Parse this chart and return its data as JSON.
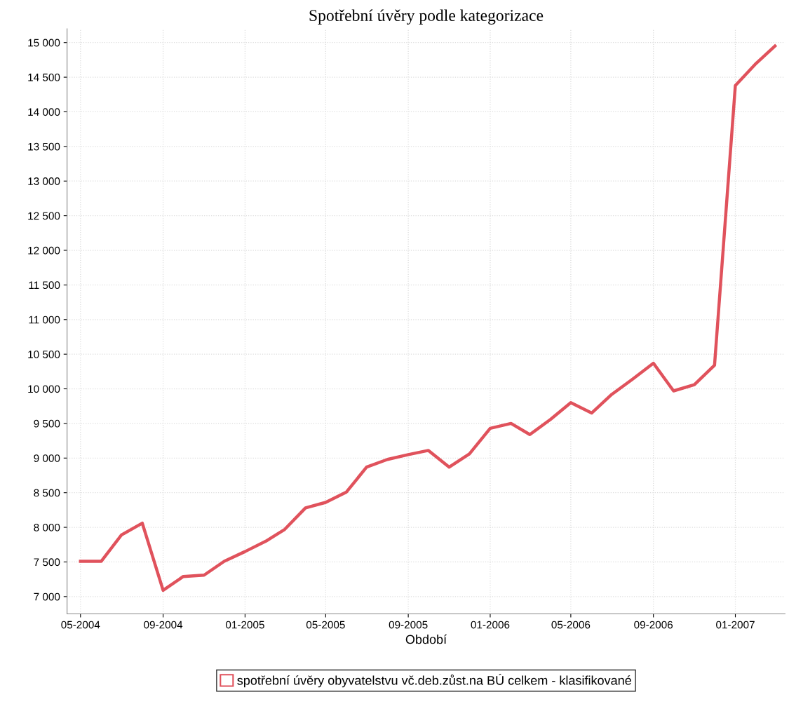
{
  "chart_data": {
    "type": "line",
    "title": "Spotřební úvěry podle kategorizace",
    "xlabel": "Období",
    "x": [
      "2004-05",
      "2004-06",
      "2004-07",
      "2004-08",
      "2004-09",
      "2004-10",
      "2004-11",
      "2004-12",
      "2005-01",
      "2005-02",
      "2005-03",
      "2005-04",
      "2005-05",
      "2005-06",
      "2005-07",
      "2005-08",
      "2005-09",
      "2005-10",
      "2005-11",
      "2005-12",
      "2006-01",
      "2006-02",
      "2006-03",
      "2006-04",
      "2006-05",
      "2006-06",
      "2006-07",
      "2006-08",
      "2006-09",
      "2006-10",
      "2006-11",
      "2006-12",
      "2007-01",
      "2007-02",
      "2007-03"
    ],
    "series": [
      {
        "name": "spotřební úvěry obyvatelstvu vč.deb.zůst.na BÚ celkem - klasifikované",
        "color": "#e0525c",
        "values": [
          7510,
          7510,
          7890,
          8060,
          7090,
          7290,
          7310,
          7510,
          7650,
          7800,
          7970,
          8280,
          8360,
          8510,
          8870,
          8980,
          9050,
          9110,
          8870,
          9060,
          9430,
          9500,
          9340,
          9560,
          9800,
          9650,
          9920,
          10140,
          10370,
          9970,
          10060,
          10340,
          14380,
          14700,
          14950
        ]
      }
    ],
    "xlim": [
      "2004-04-11",
      "2007-03-16"
    ],
    "xticks": [
      {
        "value": "2004-05",
        "label": "05-2004"
      },
      {
        "value": "2004-09",
        "label": "09-2004"
      },
      {
        "value": "2005-01",
        "label": "01-2005"
      },
      {
        "value": "2005-05",
        "label": "05-2005"
      },
      {
        "value": "2005-09",
        "label": "09-2005"
      },
      {
        "value": "2006-01",
        "label": "01-2006"
      },
      {
        "value": "2006-05",
        "label": "05-2006"
      },
      {
        "value": "2006-09",
        "label": "09-2006"
      },
      {
        "value": "2007-01",
        "label": "01-2007"
      }
    ],
    "ylim": [
      6750,
      15200
    ],
    "yticks": [
      {
        "value": 7000,
        "label": "7 000"
      },
      {
        "value": 7500,
        "label": "7 500"
      },
      {
        "value": 8000,
        "label": "8 000"
      },
      {
        "value": 8500,
        "label": "8 500"
      },
      {
        "value": 9000,
        "label": "9 000"
      },
      {
        "value": 9500,
        "label": "9 500"
      },
      {
        "value": 10000,
        "label": "10 000"
      },
      {
        "value": 10500,
        "label": "10 500"
      },
      {
        "value": 11000,
        "label": "11 000"
      },
      {
        "value": 11500,
        "label": "11 500"
      },
      {
        "value": 12000,
        "label": "12 000"
      },
      {
        "value": 12500,
        "label": "12 500"
      },
      {
        "value": 13000,
        "label": "13 000"
      },
      {
        "value": 13500,
        "label": "13 500"
      },
      {
        "value": 14000,
        "label": "14 000"
      },
      {
        "value": 14500,
        "label": "14 500"
      },
      {
        "value": 15000,
        "label": "15 000"
      }
    ],
    "grid": true,
    "legend": "bottom",
    "marker": "none",
    "line_style": "solid"
  }
}
